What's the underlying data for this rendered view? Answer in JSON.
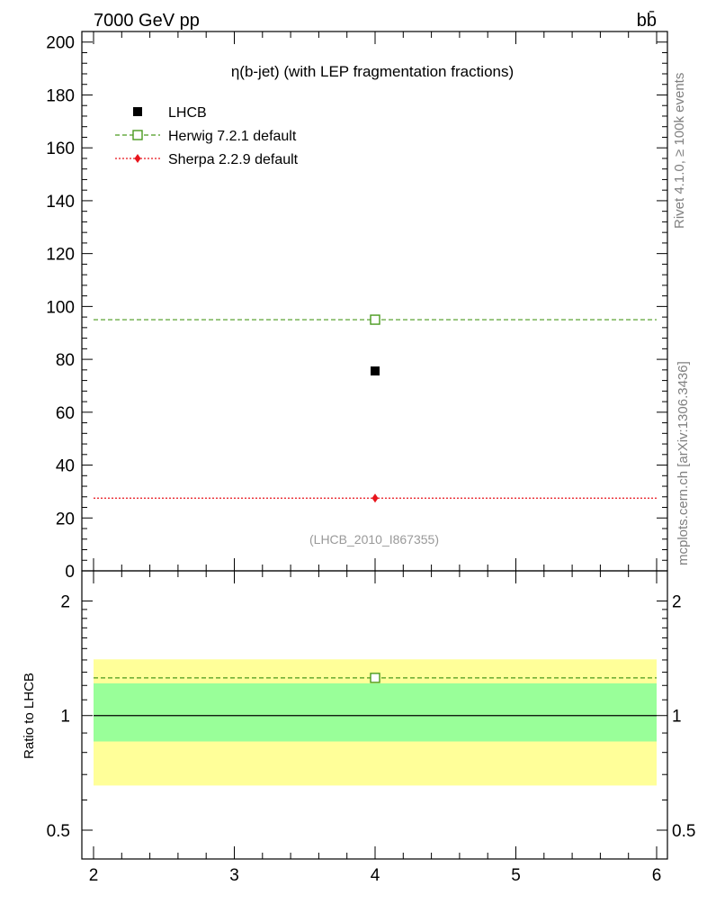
{
  "header": {
    "energy_label": "7000 GeV pp",
    "process_label": "bb̄"
  },
  "side_labels": {
    "rivet": "Rivet 4.1.0, ≥ 100k events",
    "mcplots": "mcplots.cern.ch [arXiv:1306.3436]"
  },
  "chart_data": [
    {
      "type": "scatter",
      "panel": "main",
      "title": "η(b-jet) (with LEP fragmentation fractions)",
      "watermark": "(LHCB_2010_I867355)",
      "xlim": [
        2,
        6
      ],
      "ylim": [
        0,
        204
      ],
      "y_ticks": [
        0,
        20,
        40,
        60,
        80,
        100,
        120,
        140,
        160,
        180,
        200
      ],
      "y_tick_labels": [
        "0",
        "20",
        "40",
        "60",
        "80",
        "100",
        "120",
        "140",
        "160",
        "180",
        "200"
      ],
      "legend_position": "top-left",
      "series": [
        {
          "name": "LHCB",
          "kind": "data",
          "color": "#000000",
          "marker": "square-filled",
          "x": [
            4
          ],
          "y": [
            75.6
          ]
        },
        {
          "name": "Herwig 7.2.1 default",
          "kind": "mc",
          "color": "#4a9a1e",
          "marker": "square-open",
          "line": "dashed",
          "x": [
            4
          ],
          "y": [
            95.0
          ],
          "xrange": [
            2,
            6
          ]
        },
        {
          "name": "Sherpa 2.2.9 default",
          "kind": "mc",
          "color": "#e8141c",
          "marker": "diamond-filled",
          "line": "dotted",
          "x": [
            4
          ],
          "y": [
            27.5
          ],
          "xrange": [
            2,
            6
          ]
        }
      ]
    },
    {
      "type": "scatter",
      "panel": "ratio",
      "ylabel": "Ratio to LHCB",
      "xlim": [
        2,
        6
      ],
      "ylim": [
        0.42,
        2.4
      ],
      "yscale": "log",
      "y_ticks": [
        0.5,
        1,
        2
      ],
      "y_tick_labels": [
        "0.5",
        "1",
        "2"
      ],
      "x_ticks": [
        2,
        3,
        4,
        5,
        6
      ],
      "x_tick_labels": [
        "2",
        "3",
        "4",
        "5",
        "6"
      ],
      "bands": [
        {
          "name": "total uncertainty",
          "color": "#ffff99",
          "low": 0.655,
          "high": 1.405
        },
        {
          "name": "stat uncertainty",
          "color": "#99ff99",
          "low": 0.855,
          "high": 1.215
        }
      ],
      "reference_line": 1,
      "series": [
        {
          "name": "Herwig 7.2.1 default",
          "color": "#4a9a1e",
          "marker": "square-open",
          "line": "dashed",
          "x": [
            4
          ],
          "y": [
            1.256
          ]
        }
      ]
    }
  ]
}
